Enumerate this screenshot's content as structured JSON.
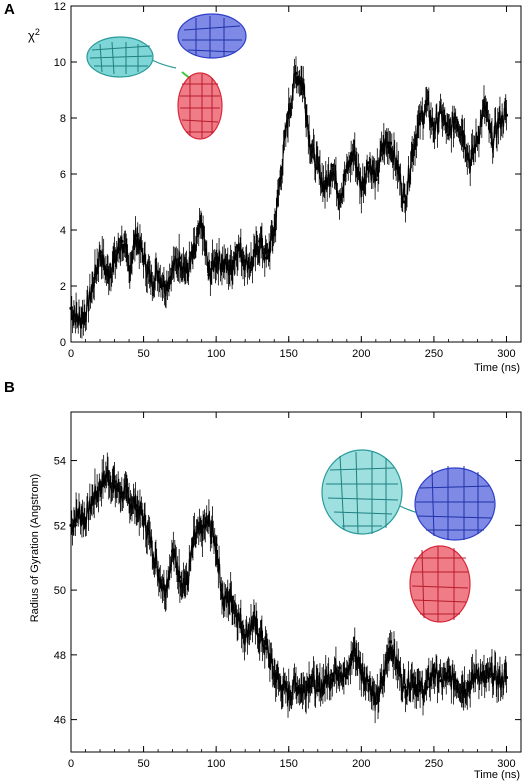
{
  "panels": {
    "a": {
      "letter": "A"
    },
    "b": {
      "letter": "B"
    }
  },
  "colors": {
    "data": "#000000",
    "axis": "#000000",
    "background": "#ffffff",
    "domain_cyan": "#3fb8b8",
    "domain_blue": "#2f3fc8",
    "domain_red": "#d8283a",
    "linker_green": "#3cc83c"
  },
  "chart_data": [
    {
      "type": "line",
      "panel": "A",
      "ylabel_base": "χ",
      "ylabel_superscript": "2",
      "xlabel": "Time (ns)",
      "xlim": [
        0,
        310
      ],
      "ylim": [
        0,
        12
      ],
      "xticks": [
        0,
        50,
        100,
        150,
        200,
        250,
        300
      ],
      "yticks": [
        0,
        2,
        4,
        6,
        8,
        10,
        12
      ],
      "error_bars": true,
      "series": [
        {
          "x": [
            0,
            5,
            10,
            15,
            20,
            25,
            30,
            35,
            40,
            45,
            50,
            55,
            60,
            65,
            70,
            75,
            80,
            85,
            90,
            95,
            100,
            105,
            110,
            115,
            120,
            125,
            130,
            135,
            140,
            145,
            150,
            155,
            160,
            165,
            170,
            175,
            180,
            185,
            190,
            195,
            200,
            205,
            210,
            215,
            220,
            225,
            230,
            235,
            240,
            245,
            250,
            255,
            260,
            265,
            270,
            275,
            280,
            285,
            290,
            295,
            300
          ],
          "y": [
            1.2,
            0.8,
            1.0,
            2.0,
            3.2,
            2.4,
            2.9,
            3.6,
            2.6,
            3.8,
            3.0,
            2.2,
            2.5,
            2.0,
            2.6,
            3.0,
            2.5,
            3.2,
            4.2,
            2.4,
            3.0,
            2.8,
            2.6,
            3.4,
            2.9,
            2.8,
            3.6,
            3.0,
            4.0,
            6.2,
            8.2,
            9.6,
            9.2,
            7.0,
            6.2,
            5.5,
            6.3,
            5.2,
            6.1,
            6.8,
            5.5,
            6.4,
            5.8,
            7.0,
            7.1,
            6.2,
            5.0,
            6.8,
            7.8,
            8.5,
            7.6,
            8.2,
            7.4,
            8.0,
            7.5,
            6.4,
            7.3,
            8.4,
            7.1,
            7.9,
            8.1
          ]
        }
      ]
    },
    {
      "type": "line",
      "panel": "B",
      "ylabel": "Radius of Gyration (Angstrom)",
      "xlabel": "Time (ns)",
      "xlim": [
        0,
        310
      ],
      "ylim": [
        45,
        55.5
      ],
      "xticks": [
        0,
        50,
        100,
        150,
        200,
        250,
        300
      ],
      "yticks": [
        46,
        48,
        50,
        52,
        54
      ],
      "error_bars": true,
      "series": [
        {
          "x": [
            0,
            5,
            10,
            15,
            20,
            25,
            30,
            35,
            40,
            45,
            50,
            55,
            60,
            65,
            70,
            75,
            80,
            85,
            90,
            95,
            100,
            105,
            110,
            115,
            120,
            125,
            130,
            135,
            140,
            145,
            150,
            155,
            160,
            165,
            170,
            175,
            180,
            185,
            190,
            195,
            200,
            205,
            210,
            215,
            220,
            225,
            230,
            235,
            240,
            245,
            250,
            255,
            260,
            265,
            270,
            275,
            280,
            285,
            290,
            295,
            300
          ],
          "y": [
            52.0,
            52.4,
            52.2,
            52.8,
            53.2,
            53.6,
            53.2,
            53.0,
            52.8,
            52.6,
            52.2,
            51.5,
            50.6,
            50.0,
            51.2,
            50.4,
            50.2,
            51.6,
            51.8,
            52.1,
            51.4,
            49.6,
            49.8,
            49.2,
            48.6,
            49.0,
            48.6,
            48.2,
            47.4,
            47.0,
            46.8,
            47.1,
            46.9,
            47.3,
            46.9,
            47.2,
            47.4,
            47.6,
            47.3,
            48.2,
            47.5,
            47.2,
            46.5,
            47.2,
            48.4,
            47.6,
            47.0,
            47.3,
            46.9,
            47.0,
            47.5,
            47.2,
            47.3,
            47.2,
            47.0,
            47.1,
            47.5,
            47.2,
            47.4,
            47.2,
            47.3
          ]
        }
      ]
    }
  ]
}
